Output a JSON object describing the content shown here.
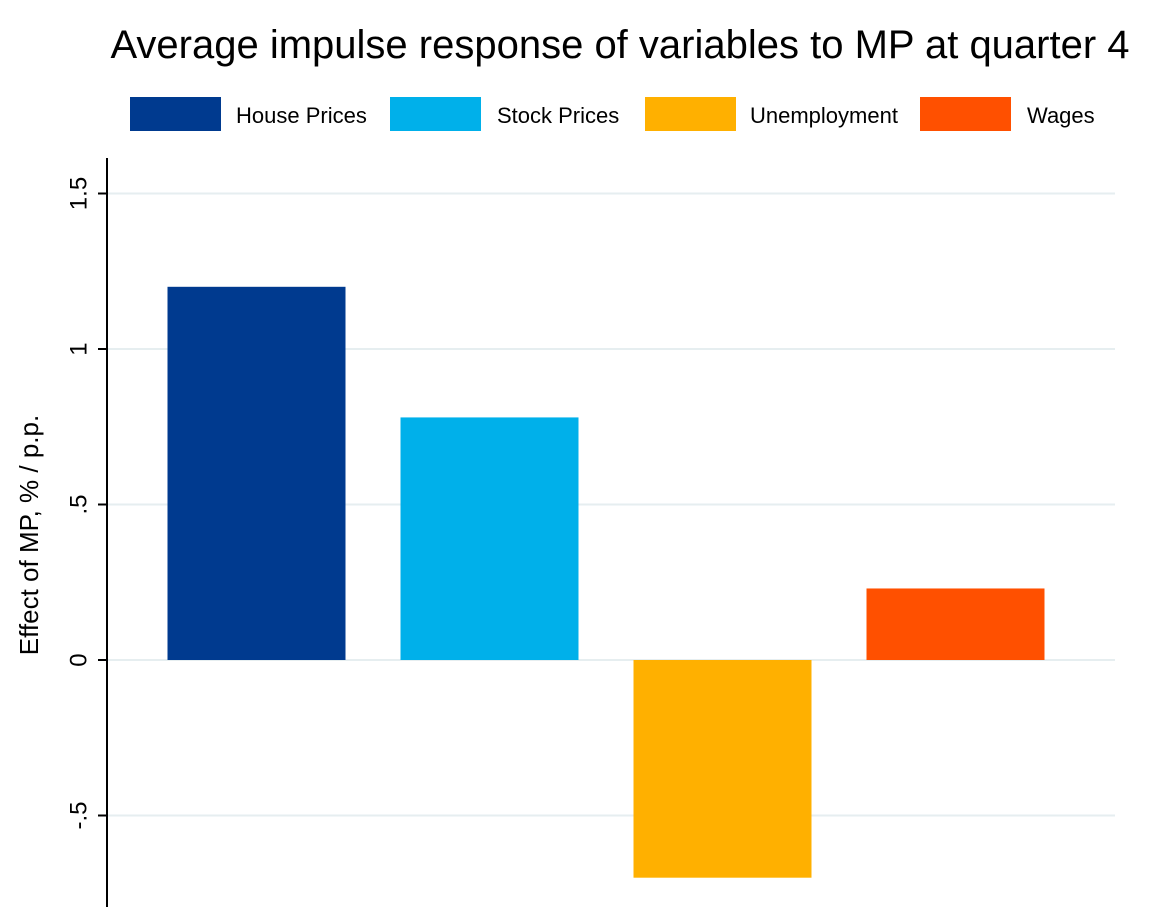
{
  "chart_data": {
    "type": "bar",
    "title": "Average impulse response of variables to MP at quarter 4",
    "xlabel": "",
    "ylabel": "Effect of MP, % / p.p.",
    "categories": [
      "House Prices",
      "Stock Prices",
      "Unemployment",
      "Wages"
    ],
    "values": [
      1.2,
      0.78,
      -0.7,
      0.23
    ],
    "colors": [
      "#003A8F",
      "#00B0EA",
      "#FFB000",
      "#FF5000"
    ],
    "ylim": [
      -0.75,
      1.6
    ],
    "yticks": [
      -0.5,
      0,
      0.5,
      1,
      1.5
    ],
    "ytick_labels": [
      "-.5",
      "0",
      ".5",
      "1",
      "1.5"
    ],
    "grid": true,
    "grid_color": "#E6EEF0",
    "legend_position": "top",
    "legend": [
      "House Prices",
      "Stock Prices",
      "Unemployment",
      "Wages"
    ]
  }
}
